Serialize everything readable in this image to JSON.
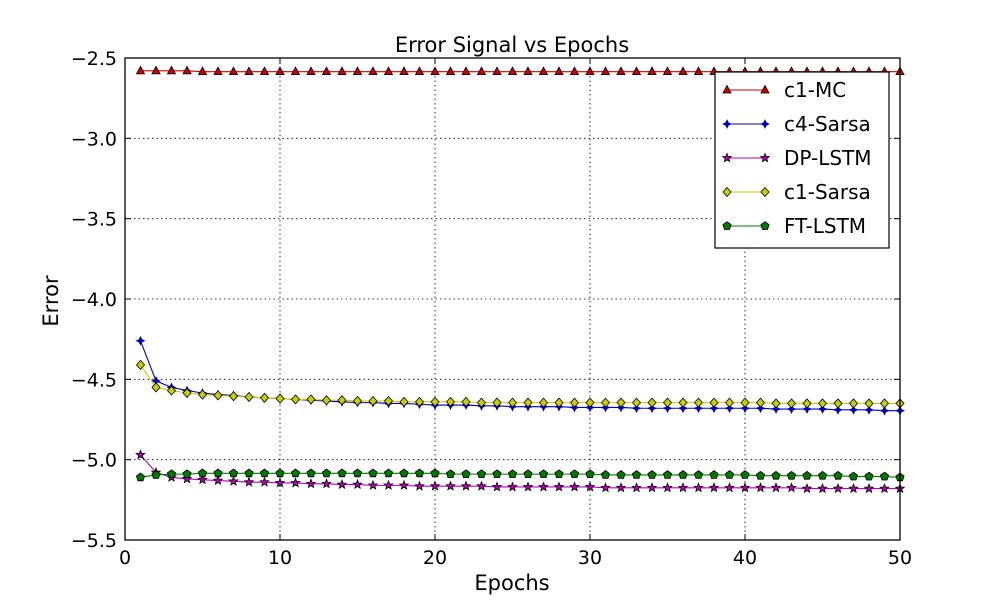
{
  "chart_data": {
    "type": "line",
    "title": "Error Signal vs Epochs",
    "xlabel": "Epochs",
    "ylabel": "Error",
    "xlim": [
      0,
      50
    ],
    "ylim": [
      -5.5,
      -2.5
    ],
    "xticks": [
      0,
      10,
      20,
      30,
      40,
      50
    ],
    "xtick_labels": [
      "0",
      "10",
      "20",
      "30",
      "40",
      "50"
    ],
    "yticks": [
      -2.5,
      -3.0,
      -3.5,
      -4.0,
      -4.5,
      -5.0,
      -5.5
    ],
    "ytick_labels": [
      "−2.5",
      "−3.0",
      "−3.5",
      "−4.0",
      "−4.5",
      "−5.0",
      "−5.5"
    ],
    "grid": true,
    "legend_position": "top-right",
    "x": [
      1,
      2,
      3,
      4,
      5,
      6,
      7,
      8,
      9,
      10,
      11,
      12,
      13,
      14,
      15,
      16,
      17,
      18,
      19,
      20,
      21,
      22,
      23,
      24,
      25,
      26,
      27,
      28,
      29,
      30,
      31,
      32,
      33,
      34,
      35,
      36,
      37,
      38,
      39,
      40,
      41,
      42,
      43,
      44,
      45,
      46,
      47,
      48,
      49,
      50
    ],
    "series": [
      {
        "name": "c1-MC",
        "color": "#cc0000",
        "marker": "triangle",
        "values": [
          -2.58,
          -2.58,
          -2.58,
          -2.58,
          -2.585,
          -2.585,
          -2.585,
          -2.585,
          -2.585,
          -2.585,
          -2.585,
          -2.585,
          -2.585,
          -2.585,
          -2.585,
          -2.585,
          -2.585,
          -2.585,
          -2.585,
          -2.585,
          -2.585,
          -2.585,
          -2.585,
          -2.585,
          -2.585,
          -2.585,
          -2.585,
          -2.585,
          -2.585,
          -2.585,
          -2.585,
          -2.585,
          -2.585,
          -2.585,
          -2.585,
          -2.585,
          -2.585,
          -2.585,
          -2.585,
          -2.585,
          -2.585,
          -2.585,
          -2.585,
          -2.585,
          -2.585,
          -2.585,
          -2.585,
          -2.585,
          -2.585,
          -2.585
        ]
      },
      {
        "name": "c4-Sarsa",
        "color": "#0000bb",
        "marker": "plus",
        "values": [
          -4.26,
          -4.51,
          -4.55,
          -4.57,
          -4.585,
          -4.595,
          -4.6,
          -4.61,
          -4.615,
          -4.62,
          -4.625,
          -4.63,
          -4.635,
          -4.64,
          -4.645,
          -4.645,
          -4.65,
          -4.65,
          -4.655,
          -4.66,
          -4.66,
          -4.66,
          -4.665,
          -4.665,
          -4.67,
          -4.67,
          -4.67,
          -4.67,
          -4.675,
          -4.675,
          -4.675,
          -4.675,
          -4.68,
          -4.68,
          -4.68,
          -4.68,
          -4.68,
          -4.68,
          -4.68,
          -4.68,
          -4.68,
          -4.685,
          -4.685,
          -4.685,
          -4.685,
          -4.69,
          -4.69,
          -4.69,
          -4.695,
          -4.695
        ]
      },
      {
        "name": "DP-LSTM",
        "color": "#bb00bb",
        "marker": "star",
        "values": [
          -4.97,
          -5.08,
          -5.11,
          -5.12,
          -5.125,
          -5.13,
          -5.135,
          -5.14,
          -5.14,
          -5.145,
          -5.145,
          -5.15,
          -5.15,
          -5.155,
          -5.155,
          -5.16,
          -5.16,
          -5.16,
          -5.165,
          -5.165,
          -5.165,
          -5.165,
          -5.165,
          -5.17,
          -5.17,
          -5.17,
          -5.17,
          -5.17,
          -5.17,
          -5.17,
          -5.175,
          -5.175,
          -5.175,
          -5.175,
          -5.175,
          -5.175,
          -5.175,
          -5.175,
          -5.175,
          -5.175,
          -5.175,
          -5.175,
          -5.175,
          -5.18,
          -5.18,
          -5.18,
          -5.18,
          -5.18,
          -5.18,
          -5.18
        ]
      },
      {
        "name": "c1-Sarsa",
        "color": "#cccc00",
        "marker": "diamond",
        "values": [
          -4.41,
          -4.55,
          -4.57,
          -4.585,
          -4.595,
          -4.6,
          -4.605,
          -4.61,
          -4.615,
          -4.62,
          -4.625,
          -4.625,
          -4.63,
          -4.63,
          -4.635,
          -4.635,
          -4.635,
          -4.64,
          -4.64,
          -4.64,
          -4.64,
          -4.64,
          -4.645,
          -4.645,
          -4.645,
          -4.645,
          -4.645,
          -4.645,
          -4.645,
          -4.645,
          -4.645,
          -4.645,
          -4.645,
          -4.645,
          -4.645,
          -4.645,
          -4.645,
          -4.645,
          -4.645,
          -4.645,
          -4.645,
          -4.65,
          -4.65,
          -4.65,
          -4.65,
          -4.65,
          -4.65,
          -4.65,
          -4.65,
          -4.65
        ]
      },
      {
        "name": "FT-LSTM",
        "color": "#007700",
        "marker": "pentagon",
        "values": [
          -5.11,
          -5.095,
          -5.09,
          -5.09,
          -5.085,
          -5.085,
          -5.085,
          -5.085,
          -5.085,
          -5.085,
          -5.085,
          -5.085,
          -5.085,
          -5.085,
          -5.085,
          -5.085,
          -5.085,
          -5.085,
          -5.085,
          -5.085,
          -5.09,
          -5.09,
          -5.09,
          -5.09,
          -5.09,
          -5.09,
          -5.09,
          -5.09,
          -5.09,
          -5.09,
          -5.095,
          -5.095,
          -5.095,
          -5.095,
          -5.095,
          -5.095,
          -5.095,
          -5.095,
          -5.095,
          -5.095,
          -5.1,
          -5.1,
          -5.1,
          -5.1,
          -5.1,
          -5.1,
          -5.105,
          -5.105,
          -5.105,
          -5.11
        ]
      }
    ]
  }
}
